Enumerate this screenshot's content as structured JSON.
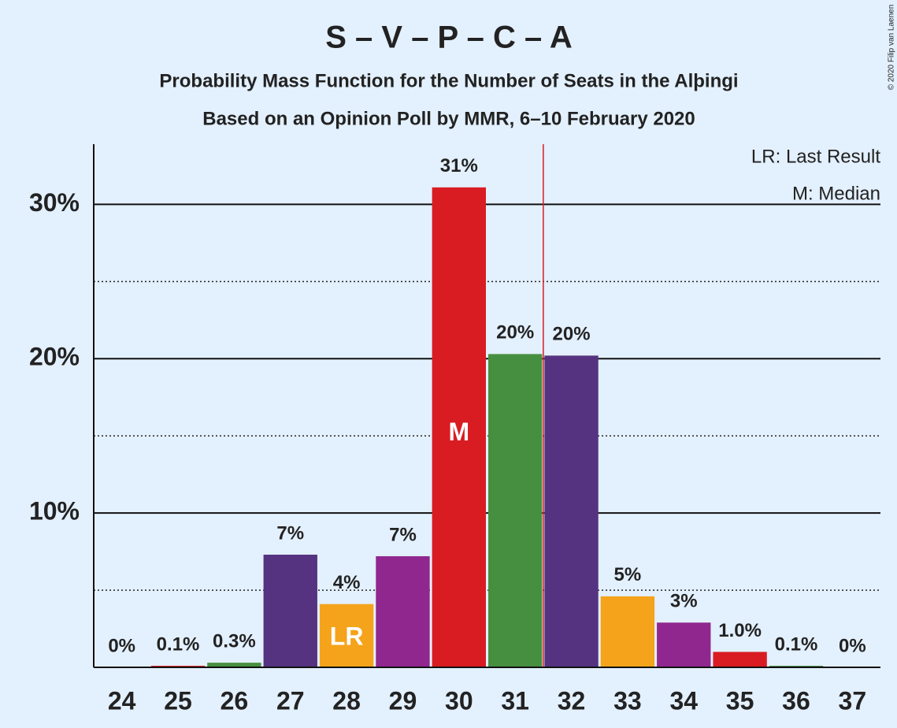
{
  "chart_data": {
    "type": "bar",
    "title": "S – V – P – C – A",
    "subtitle": "Probability Mass Function for the Number of Seats in the Alþingi",
    "subtitle2": "Based on an Opinion Poll by MMR, 6–10 February 2020",
    "copyright": "© 2020 Filip van Laenen",
    "legend": [
      "LR: Last Result",
      "M: Median"
    ],
    "categories": [
      "24",
      "25",
      "26",
      "27",
      "28",
      "29",
      "30",
      "31",
      "32",
      "33",
      "34",
      "35",
      "36",
      "37"
    ],
    "values": [
      0,
      0.1,
      0.3,
      7.3,
      4.1,
      7.2,
      31.1,
      20.3,
      20.2,
      4.6,
      2.9,
      1.0,
      0.1,
      0
    ],
    "value_labels": [
      "0%",
      "0.1%",
      "0.3%",
      "7%",
      "4%",
      "7%",
      "31%",
      "20%",
      "20%",
      "5%",
      "3%",
      "1.0%",
      "0.1%",
      "0%"
    ],
    "colors": [
      "#90278e",
      "#d91c22",
      "#478f40",
      "#553380",
      "#f5a31a",
      "#90278e",
      "#d91c22",
      "#478f40",
      "#553380",
      "#f5a31a",
      "#90278e",
      "#d91c22",
      "#478f40",
      "#553380"
    ],
    "median": "30",
    "median_label": "M",
    "last_result": "28",
    "last_result_label": "LR",
    "threshold": "32",
    "threshold_color": "#d91c22",
    "ylim": [
      0,
      33.9
    ],
    "yticks": [
      {
        "value": 10,
        "label": "10%"
      },
      {
        "value": 20,
        "label": "20%"
      },
      {
        "value": 30,
        "label": "30%"
      }
    ],
    "minor_yticks": [
      5,
      15,
      25
    ],
    "grid": true
  }
}
